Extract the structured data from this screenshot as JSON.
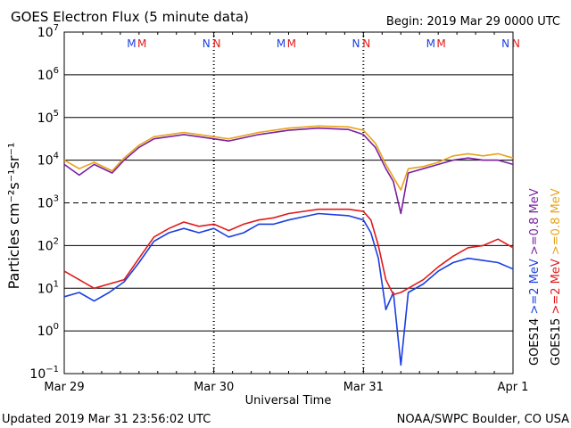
{
  "chart_data": {
    "type": "line",
    "title": "GOES Electron Flux (5 minute data)",
    "begin_label": "Begin: 2019 Mar 29 0000 UTC",
    "xlabel": "Universal Time",
    "ylabel": "Particles cm⁻²s⁻¹sr⁻¹",
    "x_unit": "days since 2019 Mar 29 0000 UTC",
    "xlim": [
      0,
      3
    ],
    "x_ticks": [
      {
        "x": 0,
        "label": "Mar 29"
      },
      {
        "x": 1,
        "label": "Mar 30"
      },
      {
        "x": 2,
        "label": "Mar 31"
      },
      {
        "x": 3,
        "label": "Apr 1"
      }
    ],
    "y_scale": "log",
    "ylim_exp": [
      -1,
      7
    ],
    "y_ticks": [
      {
        "base": "10",
        "exp": "−1"
      },
      {
        "base": "10",
        "exp": "0"
      },
      {
        "base": "10",
        "exp": "1"
      },
      {
        "base": "10",
        "exp": "2"
      },
      {
        "base": "10",
        "exp": "3"
      },
      {
        "base": "10",
        "exp": "4"
      },
      {
        "base": "10",
        "exp": "5"
      },
      {
        "base": "10",
        "exp": "6"
      },
      {
        "base": "10",
        "exp": "7"
      }
    ],
    "markers": [
      {
        "x": 0.45,
        "label": "M",
        "color": "#1a3fe0"
      },
      {
        "x": 0.52,
        "label": "M",
        "color": "#e01a1a"
      },
      {
        "x": 0.95,
        "label": "N",
        "color": "#1a3fe0"
      },
      {
        "x": 1.02,
        "label": "N",
        "color": "#e01a1a"
      },
      {
        "x": 1.45,
        "label": "M",
        "color": "#1a3fe0"
      },
      {
        "x": 1.52,
        "label": "M",
        "color": "#e01a1a"
      },
      {
        "x": 1.95,
        "label": "N",
        "color": "#1a3fe0"
      },
      {
        "x": 2.02,
        "label": "N",
        "color": "#e01a1a"
      },
      {
        "x": 2.45,
        "label": "M",
        "color": "#1a3fe0"
      },
      {
        "x": 2.52,
        "label": "M",
        "color": "#e01a1a"
      },
      {
        "x": 2.95,
        "label": "N",
        "color": "#1a3fe0"
      },
      {
        "x": 3.02,
        "label": "N",
        "color": "#e01a1a"
      }
    ],
    "legend": {
      "placement": "right-vertical",
      "columns": [
        {
          "sat": "GOES14",
          "entries": [
            {
              "label": ">=2 MeV",
              "color": "#1a3fe0"
            },
            {
              "label": ">=0.8 MeV",
              "color": "#7a1fa2"
            }
          ]
        },
        {
          "sat": "GOES15",
          "entries": [
            {
              "label": ">=2 MeV",
              "color": "#e01a1a"
            },
            {
              "label": ">=0.8 MeV",
              "color": "#e8a317"
            }
          ]
        }
      ]
    },
    "series": [
      {
        "name": "GOES14 >=0.8 MeV",
        "color": "#7a1fa2",
        "points": [
          [
            0,
            3.9
          ],
          [
            0.1,
            3.65
          ],
          [
            0.2,
            3.9
          ],
          [
            0.32,
            3.7
          ],
          [
            0.4,
            4.0
          ],
          [
            0.5,
            4.3
          ],
          [
            0.6,
            4.5
          ],
          [
            0.8,
            4.6
          ],
          [
            1.0,
            4.5
          ],
          [
            1.1,
            4.45
          ],
          [
            1.3,
            4.6
          ],
          [
            1.5,
            4.7
          ],
          [
            1.7,
            4.75
          ],
          [
            1.9,
            4.72
          ],
          [
            2.0,
            4.6
          ],
          [
            2.08,
            4.3
          ],
          [
            2.15,
            3.8
          ],
          [
            2.2,
            3.5
          ],
          [
            2.25,
            2.75
          ],
          [
            2.3,
            3.7
          ],
          [
            2.4,
            3.8
          ],
          [
            2.5,
            3.9
          ],
          [
            2.6,
            4.0
          ],
          [
            2.7,
            4.05
          ],
          [
            2.8,
            4.0
          ],
          [
            2.9,
            4.0
          ],
          [
            3.0,
            3.9
          ]
        ]
      },
      {
        "name": "GOES15 >=0.8 MeV",
        "color": "#e8a317",
        "points": [
          [
            0,
            4.0
          ],
          [
            0.1,
            3.8
          ],
          [
            0.2,
            3.95
          ],
          [
            0.32,
            3.75
          ],
          [
            0.4,
            4.05
          ],
          [
            0.5,
            4.35
          ],
          [
            0.6,
            4.55
          ],
          [
            0.8,
            4.65
          ],
          [
            1.0,
            4.55
          ],
          [
            1.1,
            4.5
          ],
          [
            1.3,
            4.65
          ],
          [
            1.5,
            4.75
          ],
          [
            1.7,
            4.8
          ],
          [
            1.9,
            4.78
          ],
          [
            2.0,
            4.7
          ],
          [
            2.08,
            4.4
          ],
          [
            2.15,
            3.9
          ],
          [
            2.2,
            3.6
          ],
          [
            2.25,
            3.3
          ],
          [
            2.3,
            3.8
          ],
          [
            2.4,
            3.85
          ],
          [
            2.5,
            3.95
          ],
          [
            2.6,
            4.1
          ],
          [
            2.7,
            4.15
          ],
          [
            2.8,
            4.1
          ],
          [
            2.9,
            4.15
          ],
          [
            3.0,
            4.05
          ]
        ]
      },
      {
        "name": "GOES14 >=2 MeV",
        "color": "#1a3fe0",
        "points": [
          [
            0,
            0.8
          ],
          [
            0.1,
            0.9
          ],
          [
            0.2,
            0.7
          ],
          [
            0.3,
            0.9
          ],
          [
            0.4,
            1.15
          ],
          [
            0.5,
            1.6
          ],
          [
            0.6,
            2.1
          ],
          [
            0.7,
            2.3
          ],
          [
            0.8,
            2.4
          ],
          [
            0.9,
            2.3
          ],
          [
            1.0,
            2.4
          ],
          [
            1.1,
            2.2
          ],
          [
            1.2,
            2.3
          ],
          [
            1.3,
            2.5
          ],
          [
            1.4,
            2.5
          ],
          [
            1.5,
            2.6
          ],
          [
            1.7,
            2.75
          ],
          [
            1.9,
            2.7
          ],
          [
            2.0,
            2.6
          ],
          [
            2.05,
            2.3
          ],
          [
            2.1,
            1.7
          ],
          [
            2.15,
            0.5
          ],
          [
            2.2,
            0.9
          ],
          [
            2.25,
            -0.8
          ],
          [
            2.3,
            0.9
          ],
          [
            2.4,
            1.1
          ],
          [
            2.5,
            1.4
          ],
          [
            2.6,
            1.6
          ],
          [
            2.7,
            1.7
          ],
          [
            2.8,
            1.65
          ],
          [
            2.9,
            1.6
          ],
          [
            3.0,
            1.45
          ]
        ]
      },
      {
        "name": "GOES15 >=2 MeV",
        "color": "#e01a1a",
        "points": [
          [
            0,
            1.4
          ],
          [
            0.1,
            1.2
          ],
          [
            0.2,
            1.0
          ],
          [
            0.3,
            1.1
          ],
          [
            0.4,
            1.2
          ],
          [
            0.5,
            1.7
          ],
          [
            0.6,
            2.2
          ],
          [
            0.7,
            2.4
          ],
          [
            0.8,
            2.55
          ],
          [
            0.9,
            2.45
          ],
          [
            1.0,
            2.5
          ],
          [
            1.1,
            2.35
          ],
          [
            1.2,
            2.5
          ],
          [
            1.3,
            2.6
          ],
          [
            1.4,
            2.65
          ],
          [
            1.5,
            2.75
          ],
          [
            1.7,
            2.85
          ],
          [
            1.9,
            2.85
          ],
          [
            2.0,
            2.8
          ],
          [
            2.05,
            2.6
          ],
          [
            2.1,
            2.0
          ],
          [
            2.15,
            1.2
          ],
          [
            2.2,
            0.85
          ],
          [
            2.25,
            0.9
          ],
          [
            2.3,
            1.0
          ],
          [
            2.4,
            1.2
          ],
          [
            2.5,
            1.5
          ],
          [
            2.6,
            1.75
          ],
          [
            2.7,
            1.95
          ],
          [
            2.8,
            2.0
          ],
          [
            2.9,
            2.15
          ],
          [
            3.0,
            1.95
          ]
        ]
      }
    ]
  },
  "footer": {
    "updated": "Updated 2019 Mar 31 23:56:02 UTC",
    "source": "NOAA/SWPC Boulder, CO USA"
  }
}
